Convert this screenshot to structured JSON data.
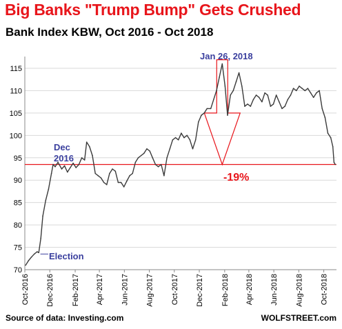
{
  "header": {
    "title": "Big Banks \"Trump Bump\" Gets Crushed",
    "subtitle": "Bank Index KBW, Oct 2016 - Oct 2018"
  },
  "footer": {
    "source": "Source of data: Investing.com",
    "credit": "WOLFSTREET.com"
  },
  "colors": {
    "title": "#e8151b",
    "subtitle": "#000000",
    "series": "#3a3a3a",
    "annotation_blue": "#3a3f9e",
    "annotation_red": "#e8151b",
    "gridline": "#d9d9d9"
  },
  "chart_data": {
    "type": "line",
    "title": "Big Banks \"Trump Bump\" Gets Crushed",
    "subtitle": "Bank Index KBW, Oct 2016 - Oct 2018",
    "xlabel": "",
    "ylabel": "",
    "ylim": [
      70,
      117
    ],
    "yticks": [
      70,
      75,
      80,
      85,
      90,
      95,
      100,
      105,
      110,
      115
    ],
    "xlim": [
      "2016-10-01",
      "2018-11-01"
    ],
    "xticks": [
      {
        "date": "2016-10-01",
        "label": "Oct-2016"
      },
      {
        "date": "2016-12-01",
        "label": "Dec-2016"
      },
      {
        "date": "2017-02-01",
        "label": "Feb-2017"
      },
      {
        "date": "2017-04-01",
        "label": "Apr-2017"
      },
      {
        "date": "2017-06-01",
        "label": "Jun-2017"
      },
      {
        "date": "2017-08-01",
        "label": "Aug-2017"
      },
      {
        "date": "2017-10-01",
        "label": "Oct-2017"
      },
      {
        "date": "2017-12-01",
        "label": "Dec-2017"
      },
      {
        "date": "2018-02-01",
        "label": "Feb-2018"
      },
      {
        "date": "2018-04-01",
        "label": "Apr-2018"
      },
      {
        "date": "2018-06-01",
        "label": "Jun-2018"
      },
      {
        "date": "2018-08-01",
        "label": "Aug-2018"
      },
      {
        "date": "2018-10-01",
        "label": "Oct-2018"
      }
    ],
    "grid": "horizontal",
    "legend": "none",
    "series": [
      {
        "points": [
          [
            "2016-10-03",
            71.0
          ],
          [
            "2016-10-10",
            72.0
          ],
          [
            "2016-10-17",
            72.8
          ],
          [
            "2016-10-24",
            73.5
          ],
          [
            "2016-10-31",
            74.0
          ],
          [
            "2016-11-04",
            73.8
          ],
          [
            "2016-11-09",
            77.0
          ],
          [
            "2016-11-14",
            82.0
          ],
          [
            "2016-11-21",
            85.5
          ],
          [
            "2016-11-28",
            88.0
          ],
          [
            "2016-12-05",
            91.5
          ],
          [
            "2016-12-09",
            93.5
          ],
          [
            "2016-12-14",
            93.0
          ],
          [
            "2016-12-21",
            94.0
          ],
          [
            "2016-12-30",
            92.5
          ],
          [
            "2017-01-06",
            93.2
          ],
          [
            "2017-01-13",
            91.8
          ],
          [
            "2017-01-20",
            92.8
          ],
          [
            "2017-01-27",
            93.8
          ],
          [
            "2017-02-03",
            92.8
          ],
          [
            "2017-02-10",
            93.5
          ],
          [
            "2017-02-17",
            95.0
          ],
          [
            "2017-02-24",
            94.5
          ],
          [
            "2017-03-01",
            98.5
          ],
          [
            "2017-03-08",
            97.5
          ],
          [
            "2017-03-15",
            95.5
          ],
          [
            "2017-03-22",
            91.5
          ],
          [
            "2017-03-29",
            91.0
          ],
          [
            "2017-04-05",
            90.5
          ],
          [
            "2017-04-12",
            89.5
          ],
          [
            "2017-04-19",
            89.0
          ],
          [
            "2017-04-26",
            91.5
          ],
          [
            "2017-05-03",
            92.5
          ],
          [
            "2017-05-10",
            92.0
          ],
          [
            "2017-05-17",
            89.5
          ],
          [
            "2017-05-24",
            89.5
          ],
          [
            "2017-05-31",
            88.5
          ],
          [
            "2017-06-07",
            89.8
          ],
          [
            "2017-06-14",
            91.0
          ],
          [
            "2017-06-21",
            91.5
          ],
          [
            "2017-06-28",
            94.0
          ],
          [
            "2017-07-05",
            95.0
          ],
          [
            "2017-07-12",
            95.5
          ],
          [
            "2017-07-19",
            96.0
          ],
          [
            "2017-07-26",
            97.0
          ],
          [
            "2017-08-02",
            96.5
          ],
          [
            "2017-08-09",
            95.0
          ],
          [
            "2017-08-16",
            93.5
          ],
          [
            "2017-08-23",
            93.0
          ],
          [
            "2017-08-30",
            93.5
          ],
          [
            "2017-09-06",
            91.0
          ],
          [
            "2017-09-13",
            95.0
          ],
          [
            "2017-09-20",
            97.0
          ],
          [
            "2017-09-27",
            99.0
          ],
          [
            "2017-10-04",
            99.5
          ],
          [
            "2017-10-11",
            99.0
          ],
          [
            "2017-10-18",
            100.5
          ],
          [
            "2017-10-25",
            99.5
          ],
          [
            "2017-11-01",
            100.0
          ],
          [
            "2017-11-08",
            99.0
          ],
          [
            "2017-11-15",
            97.0
          ],
          [
            "2017-11-22",
            99.0
          ],
          [
            "2017-11-29",
            103.0
          ],
          [
            "2017-12-06",
            104.5
          ],
          [
            "2017-12-13",
            105.0
          ],
          [
            "2017-12-20",
            106.0
          ],
          [
            "2017-12-29",
            106.0
          ],
          [
            "2018-01-05",
            108.0
          ],
          [
            "2018-01-12",
            110.0
          ],
          [
            "2018-01-19",
            113.0
          ],
          [
            "2018-01-26",
            116.0
          ],
          [
            "2018-02-02",
            111.0
          ],
          [
            "2018-02-08",
            104.5
          ],
          [
            "2018-02-15",
            109.0
          ],
          [
            "2018-02-22",
            110.0
          ],
          [
            "2018-03-01",
            112.0
          ],
          [
            "2018-03-08",
            114.0
          ],
          [
            "2018-03-15",
            111.0
          ],
          [
            "2018-03-22",
            106.5
          ],
          [
            "2018-03-29",
            107.0
          ],
          [
            "2018-04-05",
            106.5
          ],
          [
            "2018-04-12",
            108.0
          ],
          [
            "2018-04-19",
            109.0
          ],
          [
            "2018-04-26",
            108.5
          ],
          [
            "2018-05-03",
            107.5
          ],
          [
            "2018-05-10",
            109.5
          ],
          [
            "2018-05-17",
            109.0
          ],
          [
            "2018-05-24",
            106.5
          ],
          [
            "2018-05-31",
            107.0
          ],
          [
            "2018-06-07",
            109.0
          ],
          [
            "2018-06-14",
            107.5
          ],
          [
            "2018-06-21",
            106.0
          ],
          [
            "2018-06-28",
            106.5
          ],
          [
            "2018-07-05",
            108.0
          ],
          [
            "2018-07-12",
            109.0
          ],
          [
            "2018-07-19",
            110.5
          ],
          [
            "2018-07-26",
            110.0
          ],
          [
            "2018-08-02",
            111.0
          ],
          [
            "2018-08-09",
            110.5
          ],
          [
            "2018-08-16",
            110.0
          ],
          [
            "2018-08-23",
            110.5
          ],
          [
            "2018-08-30",
            109.5
          ],
          [
            "2018-09-06",
            108.5
          ],
          [
            "2018-09-13",
            109.5
          ],
          [
            "2018-09-20",
            110.0
          ],
          [
            "2018-09-27",
            106.0
          ],
          [
            "2018-10-04",
            104.0
          ],
          [
            "2018-10-11",
            100.5
          ],
          [
            "2018-10-18",
            99.5
          ],
          [
            "2018-10-23",
            97.5
          ],
          [
            "2018-10-26",
            94.0
          ],
          [
            "2018-10-29",
            93.5
          ]
        ]
      }
    ],
    "annotations": {
      "election": {
        "text": "Election",
        "date": "2016-11-08",
        "value": 73.5
      },
      "dec2016_line1": "Dec",
      "dec2016_line2": "2016",
      "peak": {
        "text": "Jan 26, 2018",
        "date": "2018-01-26",
        "value": 116.0
      },
      "decline": "-19%",
      "reference_value": 93.5
    }
  }
}
